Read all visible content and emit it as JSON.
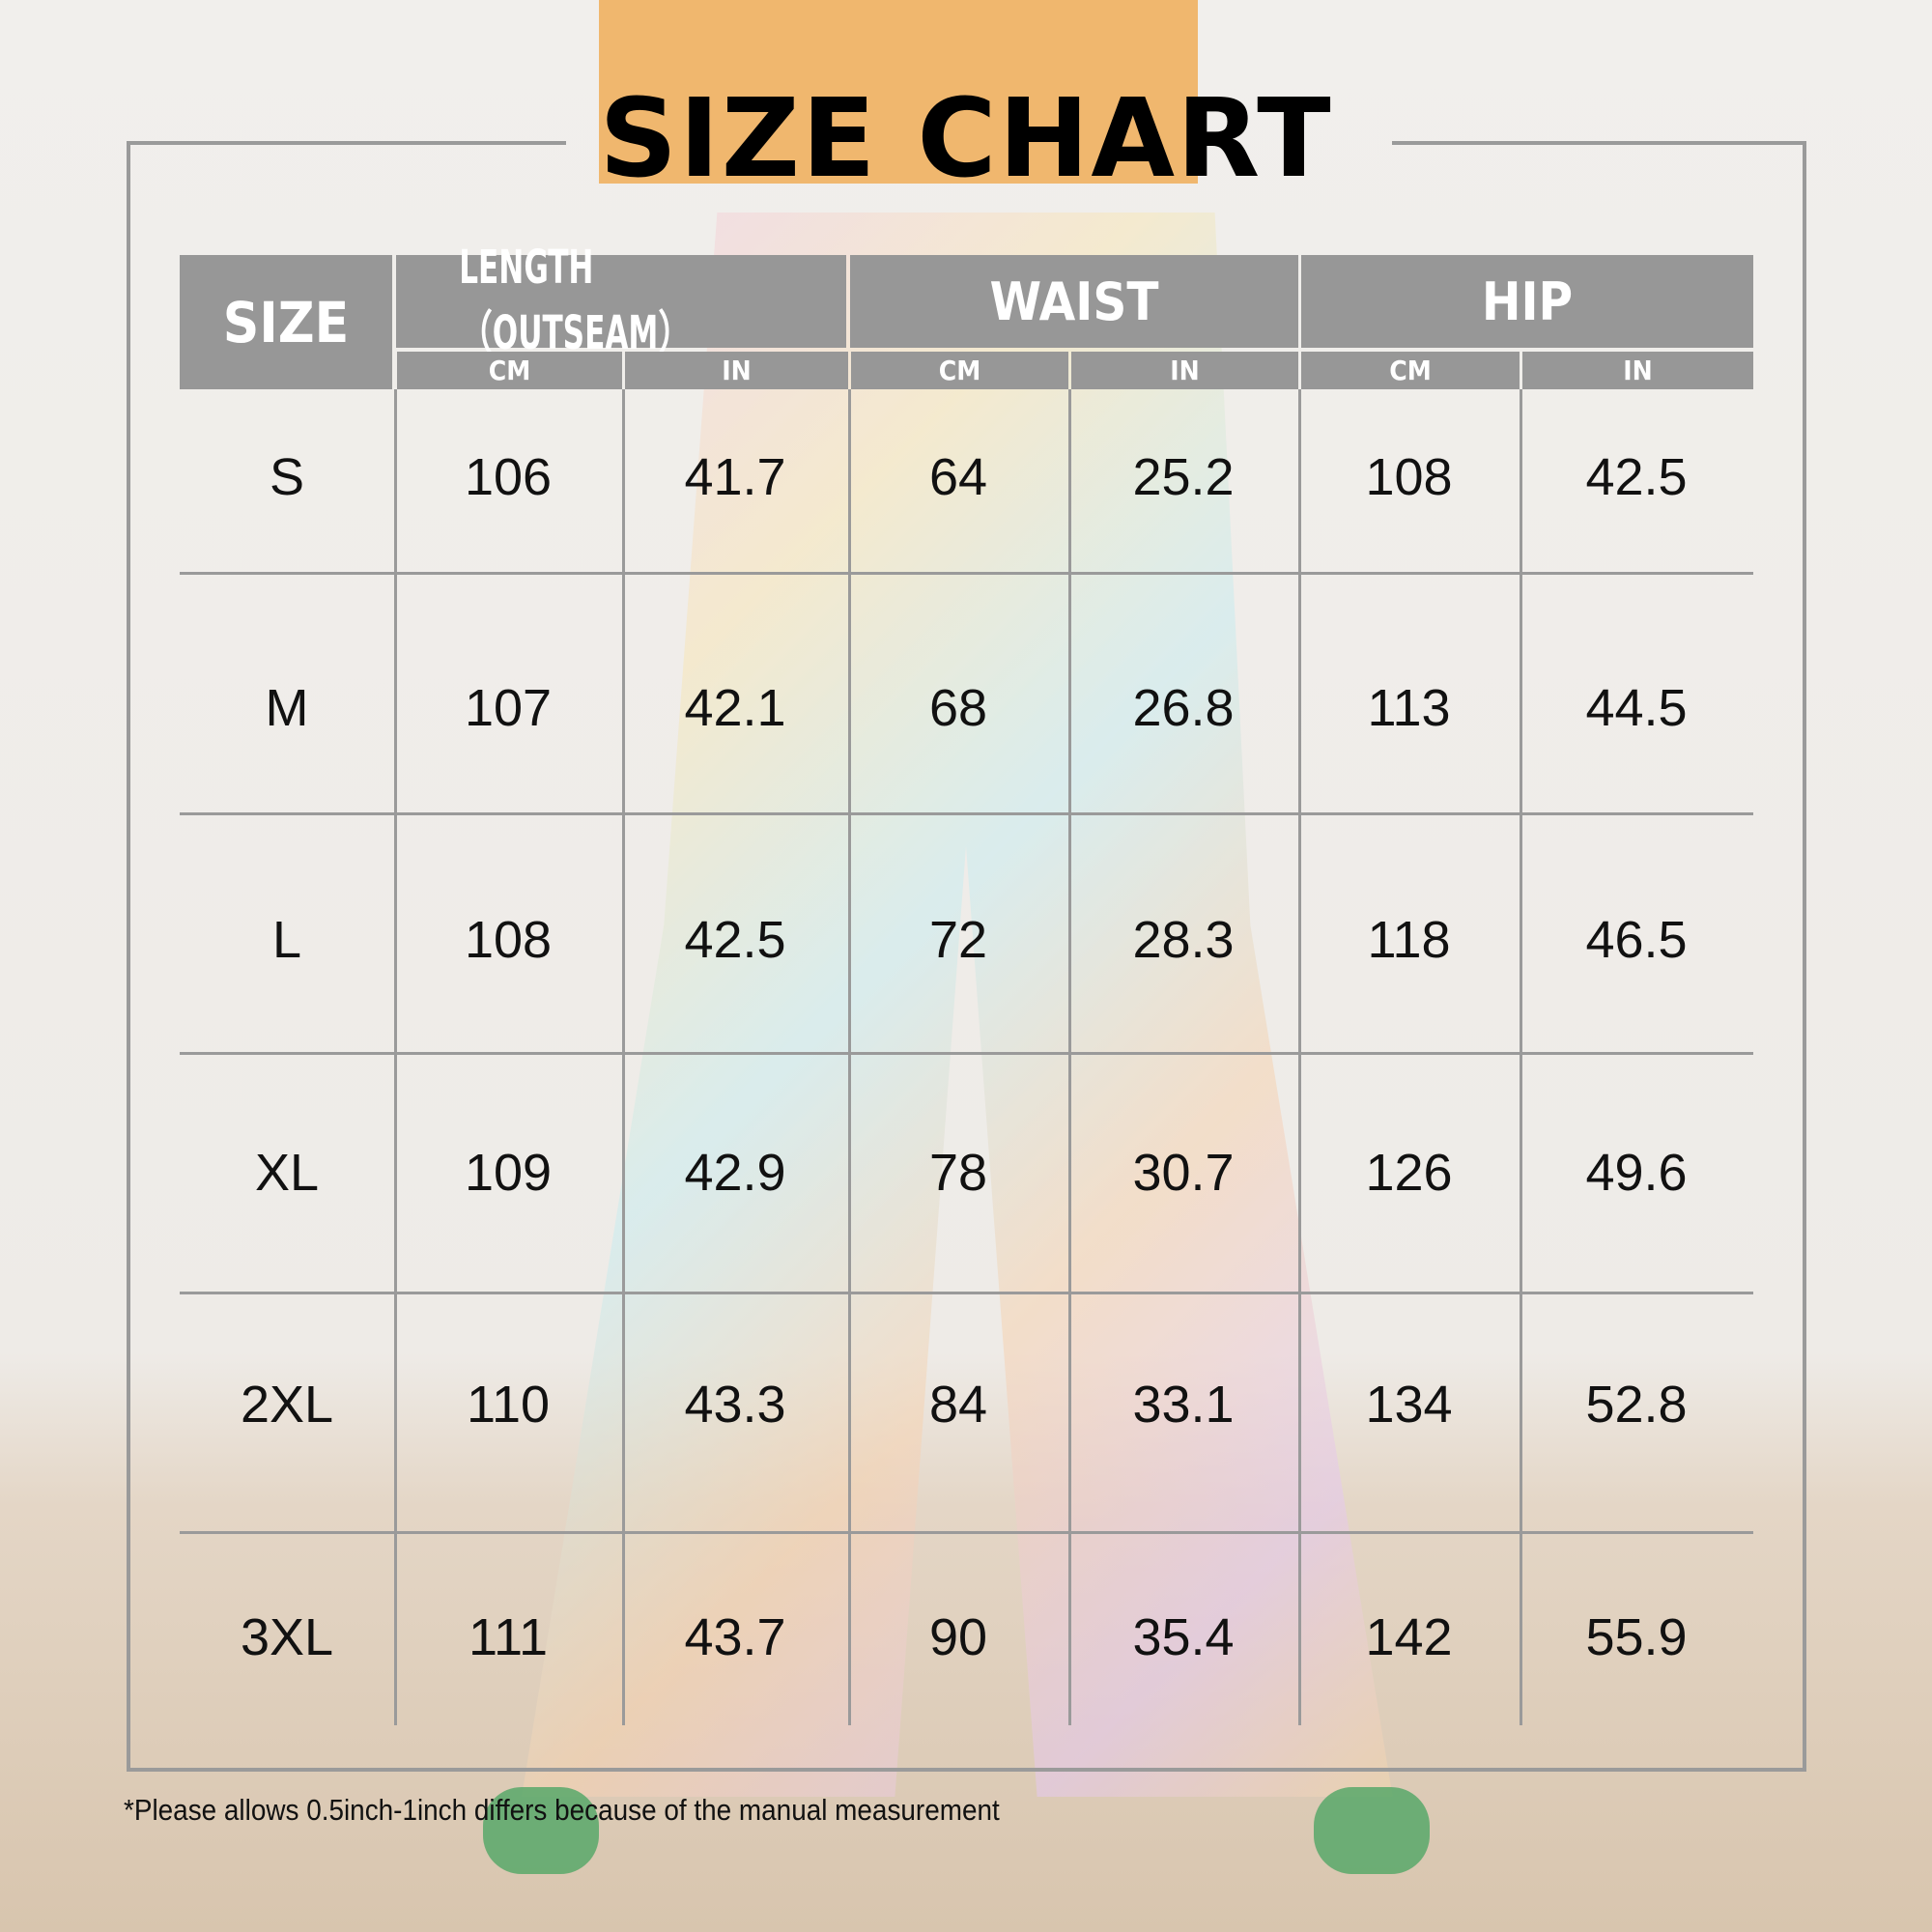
{
  "title": "SIZE CHART",
  "header": {
    "size": "SIZE",
    "groups": [
      "LENGTH（OUTSEAM）",
      "WAIST",
      "HIP"
    ],
    "units": [
      "CM",
      "IN",
      "CM",
      "IN",
      "CM",
      "IN"
    ]
  },
  "rows": [
    {
      "size": "S",
      "values": [
        "106",
        "41.7",
        "64",
        "25.2",
        "108",
        "42.5"
      ]
    },
    {
      "size": "M",
      "values": [
        "107",
        "42.1",
        "68",
        "26.8",
        "113",
        "44.5"
      ]
    },
    {
      "size": "L",
      "values": [
        "108",
        "42.5",
        "72",
        "28.3",
        "118",
        "46.5"
      ]
    },
    {
      "size": "XL",
      "values": [
        "109",
        "42.9",
        "78",
        "30.7",
        "126",
        "49.6"
      ]
    },
    {
      "size": "2XL",
      "values": [
        "110",
        "43.3",
        "84",
        "33.1",
        "134",
        "52.8"
      ]
    },
    {
      "size": "3XL",
      "values": [
        "111",
        "43.7",
        "90",
        "35.4",
        "142",
        "55.9"
      ]
    }
  ],
  "footnote": "*Please allows 0.5inch-1inch differs because of the manual measurement",
  "colors": {
    "header_bg": "#979797",
    "frame": "#9a9a9a",
    "text": "#111111"
  }
}
